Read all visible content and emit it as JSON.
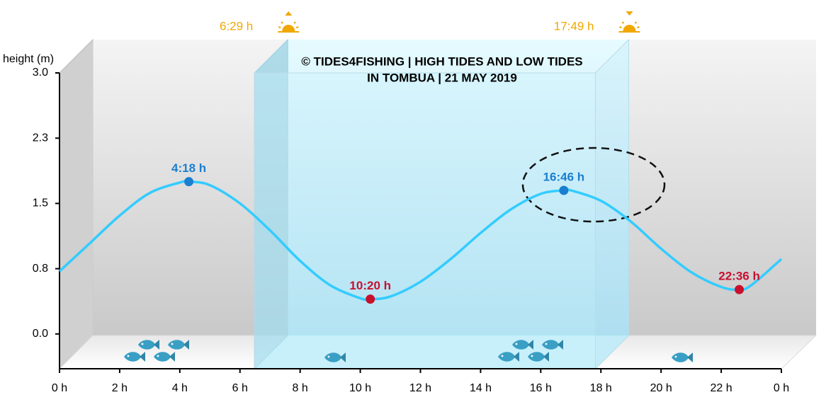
{
  "chart_data": {
    "type": "line",
    "title": [
      "© TIDES4FISHING | HIGH TIDES AND LOW TIDES",
      "IN TOMBUA | 21 MAY 2019"
    ],
    "y_label": "height (m)",
    "xlim": [
      0,
      24
    ],
    "ylim": [
      -0.4,
      3.0
    ],
    "xticks": [
      {
        "value": 0,
        "label": "0 h"
      },
      {
        "value": 2,
        "label": "2 h"
      },
      {
        "value": 4,
        "label": "4 h"
      },
      {
        "value": 6,
        "label": "6 h"
      },
      {
        "value": 8,
        "label": "8 h"
      },
      {
        "value": 10,
        "label": "10 h"
      },
      {
        "value": 12,
        "label": "12 h"
      },
      {
        "value": 14,
        "label": "14 h"
      },
      {
        "value": 16,
        "label": "16 h"
      },
      {
        "value": 18,
        "label": "18 h"
      },
      {
        "value": 20,
        "label": "20 h"
      },
      {
        "value": 22,
        "label": "22 h"
      },
      {
        "value": 24,
        "label": "0 h"
      }
    ],
    "yticks": [
      {
        "value": 0,
        "label": "0.0"
      },
      {
        "value": 0.75,
        "label": "0.8"
      },
      {
        "value": 1.5,
        "label": "1.5"
      },
      {
        "value": 2.25,
        "label": "2.3"
      },
      {
        "value": 3.0,
        "label": "3.0"
      }
    ],
    "sunrise": {
      "x": 6.483,
      "label": "6:29 h"
    },
    "sunset": {
      "x": 17.817,
      "label": "17:49 h"
    },
    "curve": {
      "color": "#33ccff",
      "x": [
        0,
        1,
        2,
        3,
        4,
        4.3,
        5,
        6,
        7,
        8,
        9,
        10,
        10.333,
        11,
        12,
        13,
        14,
        15,
        16,
        16.767,
        17,
        18,
        19,
        20,
        21,
        22,
        22.6,
        23,
        24
      ],
      "values": [
        0.72,
        1.04,
        1.36,
        1.62,
        1.74,
        1.75,
        1.71,
        1.5,
        1.19,
        0.84,
        0.56,
        0.41,
        0.4,
        0.43,
        0.6,
        0.86,
        1.16,
        1.43,
        1.61,
        1.65,
        1.65,
        1.53,
        1.29,
        0.98,
        0.71,
        0.54,
        0.51,
        0.56,
        0.86
      ]
    },
    "extremes": [
      {
        "color": "#1a7fd0",
        "x": [
          4.3,
          16.767
        ],
        "values": [
          1.75,
          1.65
        ],
        "labels": [
          "4:18 h",
          "16:46 h"
        ]
      },
      {
        "color": "#c8102e",
        "x": [
          10.333,
          22.6
        ],
        "values": [
          0.4,
          0.51
        ],
        "labels": [
          "10:20 h",
          "22:36 h"
        ]
      }
    ]
  }
}
